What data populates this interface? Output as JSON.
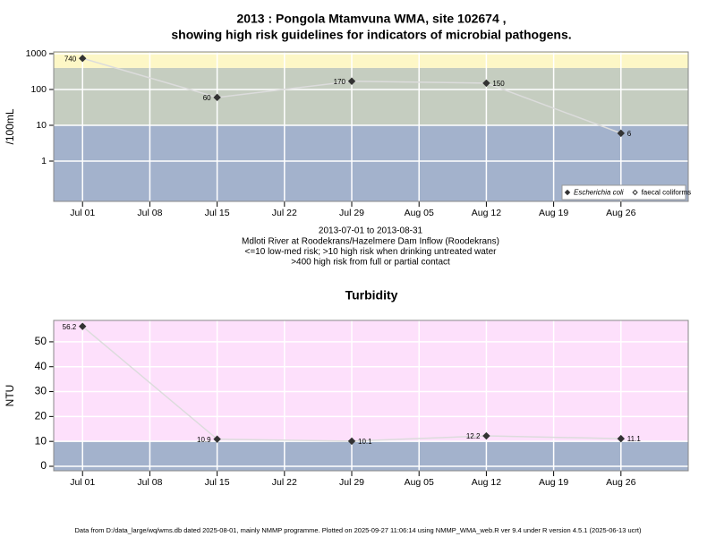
{
  "chart_data": [
    {
      "type": "line",
      "title": [
        "2013 : Pongola Mtamvuna WMA, site 102674 ,",
        "showing high risk guidelines for indicators of microbial pathogens."
      ],
      "annotations": [
        "2013-07-01 to 2013-08-31",
        "Mdloti River at Roodekrans/Hazelmere Dam Inflow (Roodekrans)",
        "<=10 low-med risk; >10 high risk when drinking untreated water",
        ">400 high risk from full or partial contact"
      ],
      "y_label": "/100mL",
      "log_y": true,
      "x": [
        "2013-07-01",
        "2013-07-15",
        "2013-07-29",
        "2013-08-12",
        "2013-08-26"
      ],
      "xlim": [
        "2013-06-28",
        "2013-09-02"
      ],
      "xticks": [
        {
          "value": "2013-07-01",
          "label": "Jul 01"
        },
        {
          "value": "2013-07-08",
          "label": "Jul 08"
        },
        {
          "value": "2013-07-15",
          "label": "Jul 15"
        },
        {
          "value": "2013-07-22",
          "label": "Jul 22"
        },
        {
          "value": "2013-07-29",
          "label": "Jul 29"
        },
        {
          "value": "2013-08-05",
          "label": "Aug 05"
        },
        {
          "value": "2013-08-12",
          "label": "Aug 12"
        },
        {
          "value": "2013-08-19",
          "label": "Aug 19"
        },
        {
          "value": "2013-08-26",
          "label": "Aug 26"
        }
      ],
      "ylim": [
        0.075,
        1120
      ],
      "yticks": [
        1,
        10,
        100,
        1000
      ],
      "thresholds": [
        10,
        400
      ],
      "band_colors": [
        "#a3b2cc",
        "#c5cdc0",
        "#fdf7c6"
      ],
      "grid": true,
      "legend": "bottom-right",
      "series": [
        {
          "name": "Escherichia coli",
          "color": "#333333",
          "line_color": "#dcdcdc",
          "marker": "filled",
          "values": [
            740,
            60,
            170,
            150,
            6
          ]
        },
        {
          "name": "faecal coliforms",
          "color": "#333333",
          "marker": "open",
          "values": [
            null,
            null,
            null,
            null,
            null
          ]
        }
      ]
    },
    {
      "type": "line",
      "title": [
        "Turbidity"
      ],
      "y_label": "NTU",
      "log_y": false,
      "x": [
        "2013-07-01",
        "2013-07-15",
        "2013-07-29",
        "2013-08-12",
        "2013-08-26"
      ],
      "xlim": [
        "2013-06-28",
        "2013-09-02"
      ],
      "xticks": [
        {
          "value": "2013-07-01",
          "label": "Jul 01"
        },
        {
          "value": "2013-07-08",
          "label": "Jul 08"
        },
        {
          "value": "2013-07-15",
          "label": "Jul 15"
        },
        {
          "value": "2013-07-22",
          "label": "Jul 22"
        },
        {
          "value": "2013-07-29",
          "label": "Jul 29"
        },
        {
          "value": "2013-08-05",
          "label": "Aug 05"
        },
        {
          "value": "2013-08-12",
          "label": "Aug 12"
        },
        {
          "value": "2013-08-19",
          "label": "Aug 19"
        },
        {
          "value": "2013-08-26",
          "label": "Aug 26"
        }
      ],
      "ylim": [
        -1.8,
        58.6
      ],
      "yticks": [
        0,
        10,
        20,
        30,
        40,
        50
      ],
      "thresholds": [
        10
      ],
      "band_colors": [
        "#a3b2cc",
        "#fde0fb"
      ],
      "grid": true,
      "series": [
        {
          "name": "Turbidity",
          "color": "#333333",
          "line_color": "#dcdcdc",
          "marker": "filled",
          "values": [
            56.2,
            10.9,
            10.1,
            12.2,
            11.1
          ]
        }
      ]
    }
  ],
  "footer": "Data from D:/data_large/wq/wms.db dated 2025-08-01, mainly NMMP programme. Plotted on 2025-09-27 11:06:14 using NMMP_WMA_web.R ver 9.4 under R version 4.5.1 (2025-06-13 ucrt)"
}
